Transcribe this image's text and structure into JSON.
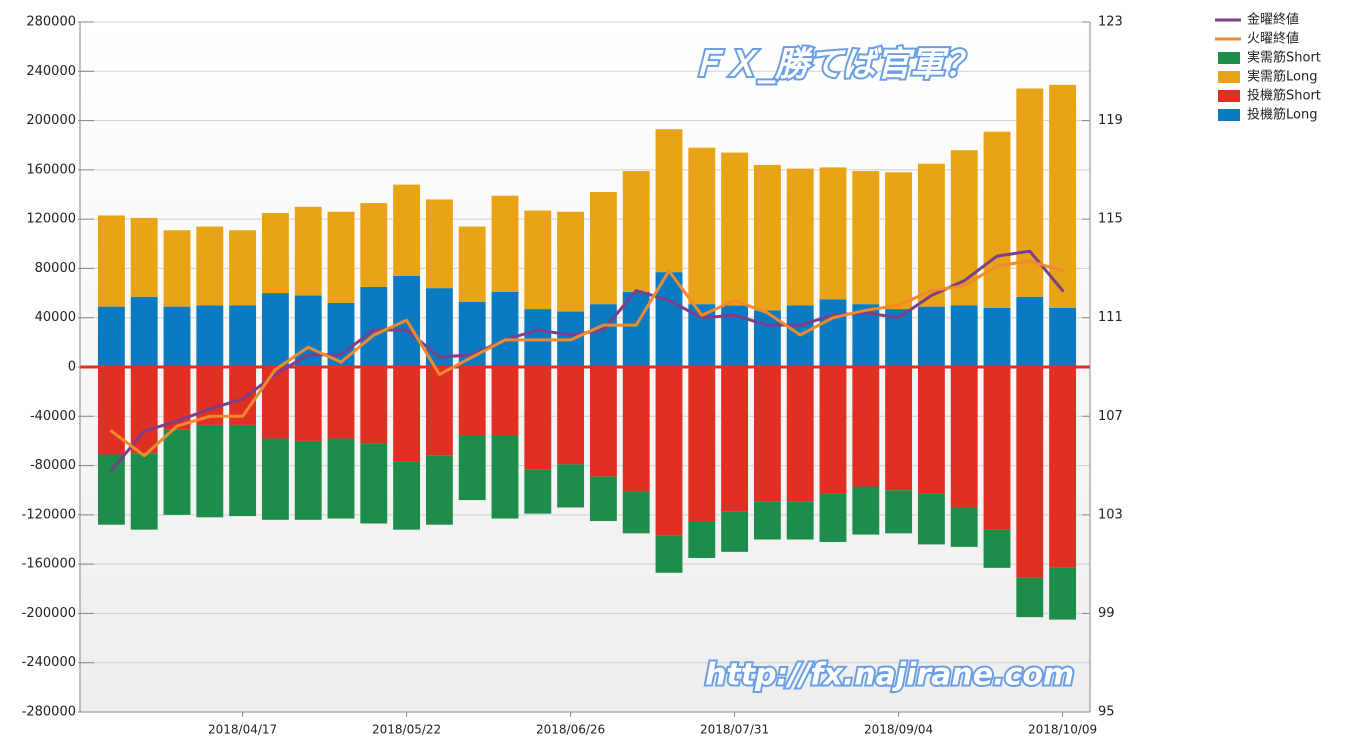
{
  "chart_data": {
    "type": "bar",
    "stacked": true,
    "watermarks": [
      "ＦＸ_勝てば官軍？",
      "http://fx.najirane.com"
    ],
    "categories": [
      null,
      null,
      null,
      null,
      "2018/04/17",
      null,
      null,
      null,
      null,
      "2018/05/22",
      null,
      null,
      null,
      null,
      "2018/06/26",
      null,
      null,
      null,
      null,
      "2018/07/31",
      null,
      null,
      null,
      null,
      "2018/09/04",
      null,
      null,
      null,
      null,
      "2018/10/09"
    ],
    "ylim": [
      -280000,
      280000
    ],
    "yticks": [
      -280000,
      -240000,
      -200000,
      -160000,
      -120000,
      -80000,
      -40000,
      0,
      40000,
      80000,
      120000,
      160000,
      200000,
      240000,
      280000
    ],
    "y2lim": [
      95,
      123
    ],
    "y2ticks": [
      95,
      99,
      103,
      107,
      111,
      115,
      119,
      123
    ],
    "grid": true,
    "legend": "top-right",
    "series": [
      {
        "name": "金曜終値",
        "type": "line",
        "axis": "y2",
        "color": "#7b3f8c",
        "values": [
          104.8,
          106.4,
          106.8,
          107.3,
          107.7,
          108.7,
          109.5,
          109.5,
          110.5,
          110.5,
          109.4,
          109.5,
          110.1,
          110.5,
          110.3,
          110.5,
          112.1,
          111.7,
          111.0,
          111.1,
          110.7,
          110.7,
          111.1,
          111.2,
          111.0,
          111.9,
          112.5,
          113.5,
          113.7,
          112.1
        ]
      },
      {
        "name": "火曜終値",
        "type": "line",
        "axis": "y2",
        "color": "#f08a2c",
        "values": [
          106.4,
          105.4,
          106.6,
          107.0,
          107.0,
          108.9,
          109.8,
          109.2,
          110.3,
          110.9,
          108.7,
          109.4,
          110.1,
          110.1,
          110.1,
          110.7,
          110.7,
          112.9,
          111.1,
          111.7,
          111.2,
          110.3,
          111.0,
          111.3,
          111.5,
          112.1,
          112.3,
          113.1,
          113.3,
          112.9
        ]
      },
      {
        "name": "実需筋Short",
        "type": "bar",
        "color": "#1e8c4a",
        "values": [
          -57000,
          -62000,
          -69000,
          -75000,
          -74000,
          -66000,
          -64000,
          -65000,
          -65000,
          -55000,
          -56000,
          -52000,
          -67000,
          -36000,
          -35000,
          -36000,
          -34000,
          -30000,
          -30000,
          -33000,
          -31000,
          -31000,
          -39000,
          -39000,
          -35000,
          -41000,
          -32000,
          -31000,
          -32000,
          -42000
        ]
      },
      {
        "name": "実需筋Long",
        "type": "bar",
        "color": "#e8a317",
        "values": [
          74000,
          64000,
          62000,
          64000,
          61000,
          65000,
          72000,
          74000,
          68000,
          74000,
          72000,
          61000,
          78000,
          80000,
          81000,
          91000,
          98000,
          116000,
          127000,
          124000,
          118000,
          111000,
          107000,
          108000,
          111000,
          116000,
          126000,
          143000,
          169000,
          181000
        ]
      },
      {
        "name": "投機筋Short",
        "type": "bar",
        "color": "#e03024",
        "values": [
          -71000,
          -70000,
          -51000,
          -47000,
          -47000,
          -58000,
          -60000,
          -58000,
          -62000,
          -77000,
          -72000,
          -56000,
          -56000,
          -83000,
          -79000,
          -89000,
          -101000,
          -137000,
          -125000,
          -117000,
          -109000,
          -109000,
          -103000,
          -97000,
          -100000,
          -103000,
          -114000,
          -132000,
          -171000,
          -163000
        ]
      },
      {
        "name": "投機筋Long",
        "type": "bar",
        "color": "#0b7bc1",
        "values": [
          49000,
          57000,
          49000,
          50000,
          50000,
          60000,
          58000,
          52000,
          65000,
          74000,
          64000,
          53000,
          61000,
          47000,
          45000,
          51000,
          61000,
          77000,
          51000,
          50000,
          46000,
          50000,
          55000,
          51000,
          47000,
          49000,
          50000,
          48000,
          57000,
          48000
        ]
      }
    ]
  }
}
